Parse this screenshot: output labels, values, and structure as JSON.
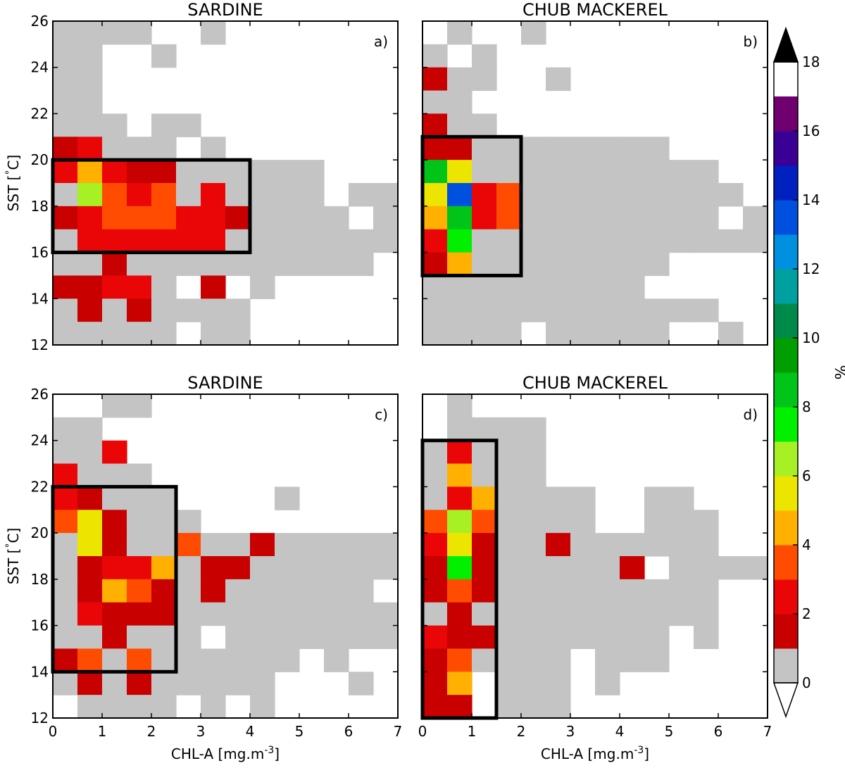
{
  "chart_data": {
    "type": "heatmap",
    "colorbar": {
      "label": "%",
      "ticks": [
        "0",
        "2",
        "4",
        "6",
        "8",
        "10",
        "12",
        "14",
        "16",
        "18"
      ],
      "levels": [
        0,
        1,
        2,
        3,
        4,
        5,
        6,
        7,
        8,
        9,
        10,
        11,
        12,
        13,
        14,
        15,
        16,
        17,
        18
      ],
      "colors": [
        "#c4c4c4",
        "#c80000",
        "#ea0606",
        "#ff4c00",
        "#ffb000",
        "#ebe500",
        "#a6f024",
        "#00f000",
        "#00c518",
        "#009e00",
        "#008a4a",
        "#00a0a0",
        "#0090e0",
        "#0050e0",
        "#0020c0",
        "#3a0096",
        "#700070"
      ],
      "over_color": "#000000",
      "under_color": "#ffffff",
      "extend": "both"
    },
    "panels": [
      {
        "title": "SARDINE",
        "tag": "a)",
        "xlabel": "",
        "ylabel": "SST [$^\\circ$C]",
        "xlim": [
          0,
          7
        ],
        "ylim": [
          12,
          26
        ],
        "xticks": [
          "0",
          "1",
          "2",
          "3",
          "4",
          "5",
          "6",
          "7"
        ],
        "yticks": [
          "12",
          "14",
          "16",
          "18",
          "20",
          "22",
          "24",
          "26"
        ],
        "x_bin_width": 0.5,
        "y_bin_width": 1,
        "y_bins_top_to_bottom": [
          25.5,
          24.5,
          23.5,
          22.5,
          21.5,
          20.5,
          19.5,
          18.5,
          17.5,
          16.5,
          15.5,
          14.5,
          13.5,
          12.5
        ],
        "box": {
          "x": [
            0,
            4
          ],
          "y": [
            16,
            20
          ]
        },
        "grid": [
          "GGGG..G.......",
          "GG..G.........",
          "GG............",
          "GG............",
          "GGG.GG........",
          "12GGG.G.......",
          "24211GGGGGG...",
          "G6323G2GGGG.GG",
          "12333221GGGG.G",
          "G222222GGGGGGG",
          "GG1GGGGGGGGGG.",
          "1122G.1.G.....",
          "G1G1GGGG......",
          "GGGGG.GG......"
        ]
      },
      {
        "title": "CHUB MACKEREL",
        "tag": "b)",
        "xlabel": "",
        "ylabel": "",
        "xlim": [
          0,
          7
        ],
        "ylim": [
          12,
          26
        ],
        "xticks": [
          "0",
          "1",
          "2",
          "3",
          "4",
          "5",
          "6",
          "7"
        ],
        "yticks": [
          "12",
          "14",
          "16",
          "18",
          "20",
          "22",
          "24",
          "26"
        ],
        "x_bin_width": 0.5,
        "y_bin_width": 1,
        "y_bins_top_to_bottom": [
          25.5,
          24.5,
          23.5,
          22.5,
          21.5,
          20.5,
          19.5,
          18.5,
          17.5,
          16.5,
          15.5,
          14.5,
          13.5,
          12.5
        ],
        "box": {
          "x": [
            0,
            2
          ],
          "y": [
            15,
            21
          ]
        },
        "grid": [
          ".G..G.........",
          "G.G...........",
          "1GG..G........",
          "GG............",
          "1GG...........",
          "11GGGGGGGG....",
          "85GGGGGGGGGG..",
          "5d23GGGGGGGGG.",
          "4823GGGGGGGG.G",
          "27GGGGGGGGGGGG",
          "14GGGGGGGG....",
          "GGGGGGGGG.....",
          "GGGGGGGGGGGG..",
          "GGGG.GGGGG..G."
        ]
      },
      {
        "title": "SARDINE",
        "tag": "c)",
        "xlabel": "CHL-A [mg.m$^{-3}$]",
        "ylabel": "SST [$^\\circ$C]",
        "xlim": [
          0,
          7
        ],
        "ylim": [
          12,
          26
        ],
        "xticks": [
          "0",
          "1",
          "2",
          "3",
          "4",
          "5",
          "6",
          "7"
        ],
        "yticks": [
          "12",
          "14",
          "16",
          "18",
          "20",
          "22",
          "24",
          "26"
        ],
        "x_bin_width": 0.5,
        "y_bin_width": 1,
        "y_bins_top_to_bottom": [
          25.5,
          24.5,
          23.5,
          22.5,
          21.5,
          20.5,
          19.5,
          18.5,
          17.5,
          16.5,
          15.5,
          14.5,
          13.5,
          12.5
        ],
        "box": {
          "x": [
            0,
            2.5
          ],
          "y": [
            14,
            22
          ]
        },
        "grid": [
          "..GG..........",
          "GG............",
          "GG2...........",
          "2GGG..........",
          "21GGG....G....",
          "351GGG........",
          "G51GG3GG1GGGGG",
          "G1224G11GGGGGG",
          "G1431G1GGGGGG.",
          "G2111GGGGGGGGG",
          "GG1GGG.GGGGGGG",
          "13G3GGGGGG.G..",
          "G1G1GGGGG...G.",
          ".GGGG.G.G....."
        ]
      },
      {
        "title": "CHUB MACKEREL",
        "tag": "d)",
        "xlabel": "CHL-A [mg.m$^{-3}$]",
        "ylabel": "",
        "xlim": [
          0,
          7
        ],
        "ylim": [
          12,
          26
        ],
        "xticks": [
          "0",
          "1",
          "2",
          "3",
          "4",
          "5",
          "6",
          "7"
        ],
        "yticks": [
          "12",
          "14",
          "16",
          "18",
          "20",
          "22",
          "24",
          "26"
        ],
        "x_bin_width": 0.5,
        "y_bin_width": 1,
        "y_bins_top_to_bottom": [
          25.5,
          24.5,
          23.5,
          22.5,
          21.5,
          20.5,
          19.5,
          18.5,
          17.5,
          16.5,
          15.5,
          14.5,
          13.5,
          12.5
        ],
        "box": {
          "x": [
            0,
            1.5
          ],
          "y": [
            12,
            24
          ]
        },
        "grid": [
          ".G............",
          ".GGGG.........",
          "G2GGG.........",
          "G4GGG.........",
          "G24GGGG..GG...",
          "363GGGG..GGG..",
          "251GG1GGGGGG..",
          "171GGGGG1.GGGG",
          "131GGGGGGGGG..",
          "G1GGGGGGGGGG..",
          "211GGGGGGG.G..",
          "13GGGG.GGG....",
          "14.GGG.G......",
          "11.GGG........"
        ]
      }
    ]
  }
}
